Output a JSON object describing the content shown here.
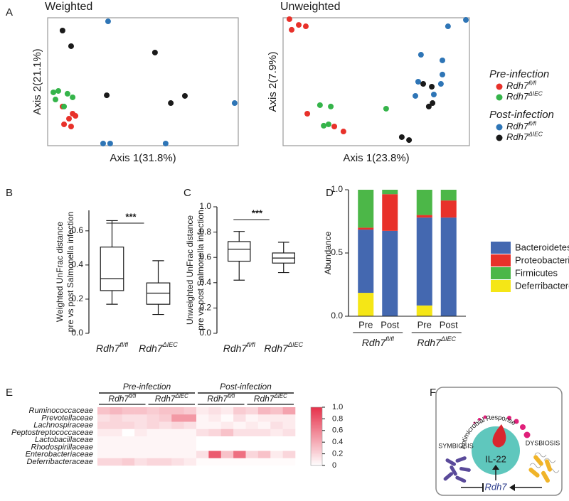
{
  "chart_data": [
    {
      "type": "scatter",
      "panel": "A",
      "title": "Weighted",
      "xlabel": "Axis 1(31.8%)",
      "ylabel": "Axis 2(21.1%)",
      "xlim": [
        0,
        100
      ],
      "ylim": [
        0,
        100
      ],
      "series": [
        {
          "color": "#e8312a",
          "x": [
            7.8,
            13.1,
            11.2,
            8.6,
            12.3,
            14.6
          ],
          "y": [
            30.6,
            25,
            21.1,
            16.7,
            15,
            23.3
          ]
        },
        {
          "color": "#35b44a",
          "x": [
            3,
            5.6,
            10.4,
            13.1,
            4.1,
            8.6
          ],
          "y": [
            41.7,
            42.8,
            40.6,
            37.8,
            36.1,
            30.6
          ]
        },
        {
          "color": "#2e75b6",
          "x": [
            31.7,
            98.1,
            29.1,
            32.8,
            61.9
          ],
          "y": [
            97.2,
            33.3,
            1.7,
            1.7,
            1.7
          ]
        },
        {
          "color": "#1a1a1a",
          "x": [
            7.8,
            12.3,
            56.3,
            31,
            72,
            64.6
          ],
          "y": [
            90,
            77.8,
            72.8,
            39.4,
            38.9,
            33.3
          ]
        }
      ]
    },
    {
      "type": "scatter",
      "title": "Unweighted",
      "xlabel": "Axis 1(23.8%)",
      "ylabel": "Axis 2(7.9%)",
      "xlim": [
        0,
        100
      ],
      "ylim": [
        0,
        100
      ],
      "legend_groups": [
        "Pre-infection",
        "Post-infection"
      ],
      "series": [
        {
          "group": 0,
          "name": "Rdh7",
          "name_sup": "fl/fl",
          "color": "#e8312a",
          "x": [
            3.4,
            4.6,
            8.4,
            12.2,
            13,
            27.5,
            32.4
          ],
          "y": [
            98.9,
            90.6,
            94.4,
            93.3,
            25,
            15,
            11.1
          ]
        },
        {
          "group": 0,
          "name": "Rdh7",
          "name_sup": "ΔIEC",
          "color": "#35b44a",
          "x": [
            19.8,
            25.6,
            21.8,
            24.4,
            55.3
          ],
          "y": [
            31.7,
            30.6,
            15.6,
            16.7,
            28.9
          ]
        },
        {
          "group": 1,
          "name": "Rdh7",
          "name_sup": "fl/fl",
          "color": "#2e75b6",
          "x": [
            88.5,
            98.1,
            85.5,
            74,
            85.5,
            72.5,
            84.7,
            71,
            80.9
          ],
          "y": [
            93.3,
            98.3,
            66.7,
            71.1,
            55.6,
            50,
            48.3,
            38.9,
            40
          ]
        },
        {
          "group": 1,
          "name": "Rdh7",
          "name_sup": "ΔIEC",
          "color": "#1a1a1a",
          "x": [
            75.2,
            79.8,
            80.2,
            78.2,
            63.7,
            67.6
          ],
          "y": [
            48.3,
            46.1,
            33.3,
            30.6,
            6.7,
            4.4
          ]
        }
      ]
    },
    {
      "type": "box",
      "panel": "B",
      "ylabel": [
        "Weighted UnFrac distance",
        "pre vs post Salmonella infection"
      ],
      "categories": [
        {
          "name": "Rdh7",
          "sup": "fl/fl"
        },
        {
          "name": "Rdh7",
          "sup": "ΔIEC"
        }
      ],
      "boxes": [
        {
          "whislo": 0.17,
          "q1": 0.25,
          "med": 0.32,
          "q3": 0.505,
          "whishi": 0.66
        },
        {
          "whislo": 0.11,
          "q1": 0.17,
          "med": 0.235,
          "q3": 0.295,
          "whishi": 0.425
        }
      ],
      "significance": "***",
      "ylim": [
        0,
        0.72
      ],
      "yticks": [
        {
          "value": 0,
          "label": "0.0"
        },
        0.2,
        0.4,
        0.6
      ]
    },
    {
      "type": "box",
      "panel": "C",
      "ylabel": [
        "Unweighted UnFrac distance",
        "pre vs post Salmonella infection"
      ],
      "categories": [
        {
          "name": "Rdh7",
          "sup": "fl/fl"
        },
        {
          "name": "Rdh7",
          "sup": "ΔIEC"
        }
      ],
      "boxes": [
        {
          "whislo": 0.42,
          "q1": 0.57,
          "med": 0.665,
          "q3": 0.725,
          "whishi": 0.805
        },
        {
          "whislo": 0.48,
          "q1": 0.555,
          "med": 0.595,
          "q3": 0.635,
          "whishi": 0.72
        }
      ],
      "significance": "***",
      "ylim": [
        0,
        1
      ],
      "yticks": [
        {
          "value": 0,
          "label": "0.0"
        },
        0.2,
        0.4,
        0.6,
        0.8,
        {
          "value": 1,
          "label": "1.0"
        }
      ]
    },
    {
      "type": "stacked_bar",
      "panel": "D",
      "ylabel": "Abundance",
      "categories": [
        "Pre",
        "Post",
        "Pre",
        "Post"
      ],
      "groups": [
        {
          "name": "Rdh7",
          "sup": "fl/fl"
        },
        {
          "name": "Rdh7",
          "sup": "ΔIEC"
        }
      ],
      "series": [
        {
          "name": "Bacteroidetes",
          "color": "#4468b0",
          "values": [
            0.5,
            0.675,
            0.695,
            0.78
          ]
        },
        {
          "name": "Proteobacteria",
          "color": "#e8312a",
          "values": [
            0.015,
            0.29,
            0.02,
            0.135
          ]
        },
        {
          "name": "Firmicutes",
          "color": "#4cb748",
          "values": [
            0.3,
            0.035,
            0.2,
            0.085
          ]
        },
        {
          "name": "Deferribacteres",
          "color": "#f5e616",
          "values": [
            0.185,
            0,
            0.085,
            0
          ]
        }
      ],
      "ylim": [
        0,
        1
      ],
      "yticks": [
        {
          "value": 0,
          "label": "0.0"
        },
        0.5,
        {
          "value": 1,
          "label": "1.0"
        }
      ]
    },
    {
      "type": "heatmap",
      "panel": "E",
      "column_groups": [
        "Pre-infection",
        "Post-infection"
      ],
      "column_subgroups": [
        {
          "name": "Rdh7",
          "sup": "fl/fl"
        },
        {
          "name": "Rdh7",
          "sup": "ΔIEC"
        },
        {
          "name": "Rdh7",
          "sup": "fl/fl"
        },
        {
          "name": "Rdh7",
          "sup": "ΔIEC"
        }
      ],
      "rows": [
        "Ruminococcaceae",
        "Prevotellaceae",
        "Lachnospiraceae",
        "Peptostreptococcaceae",
        "Lactobacillaceae",
        "Rhodospirillaceae",
        "Enterobacteriaceae",
        "Deferribacteraceae"
      ],
      "values": [
        [
          0.3,
          0.35,
          0.3,
          0.3,
          0.25,
          0.3,
          0.3,
          0.25,
          0.1,
          0.15,
          0.1,
          0.25,
          0.2,
          0.35,
          0.3,
          0.45
        ],
        [
          0.15,
          0.2,
          0.15,
          0.15,
          0.2,
          0.25,
          0.5,
          0.5,
          0.05,
          0.1,
          0.02,
          0.15,
          0.05,
          0.1,
          0.1,
          0.1
        ],
        [
          0.2,
          0.2,
          0.2,
          0.15,
          0.2,
          0.15,
          0.2,
          0.15,
          0.05,
          0.05,
          0.1,
          0.05,
          0.1,
          0.05,
          0.15,
          0.1
        ],
        [
          0.1,
          0.1,
          0,
          0.1,
          0.05,
          0.05,
          0.05,
          0.05,
          0.15,
          0.2,
          0.3,
          0.15,
          0.15,
          0.15,
          0.1,
          0.15
        ],
        [
          0.05,
          0.05,
          0.05,
          0.05,
          0.05,
          0.05,
          0.05,
          0.05,
          0,
          0,
          0,
          0,
          0,
          0,
          0,
          0
        ],
        [
          0.05,
          0.05,
          0.05,
          0.05,
          0.05,
          0.05,
          0.05,
          0.05,
          0,
          0,
          0,
          0,
          0,
          0,
          0,
          0
        ],
        [
          0.05,
          0.05,
          0.05,
          0.05,
          0.05,
          0.05,
          0.05,
          0.05,
          0.15,
          0.8,
          0.3,
          0.7,
          0.2,
          0.3,
          0.1,
          0.2
        ],
        [
          0.2,
          0.2,
          0.25,
          0.15,
          0.2,
          0.2,
          0.15,
          0.1,
          0.02,
          0.02,
          0.02,
          0.02,
          0.02,
          0.02,
          0.02,
          0.02
        ]
      ],
      "color": "#e6324b",
      "clim": [
        0,
        1
      ],
      "cticks": [
        0,
        0.2,
        0.4,
        0.6,
        0.8,
        {
          "value": 1,
          "label": "1.0"
        }
      ]
    }
  ],
  "panel_f": {
    "panel": "F",
    "response": "Antimicrobial Response",
    "cytokine": "IL-22",
    "left": "SYMBIOSIS",
    "right": "DYSBIOSIS",
    "gene": "Rdh7"
  }
}
